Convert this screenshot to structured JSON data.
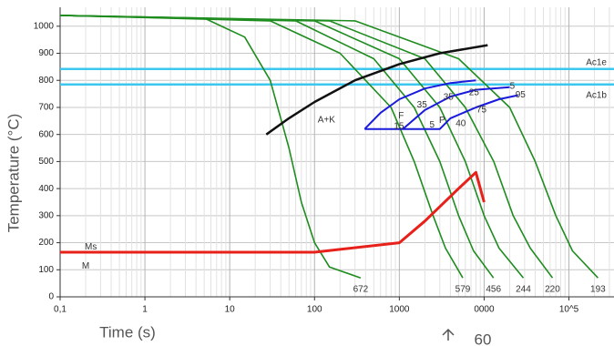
{
  "chart_data": {
    "type": "line",
    "x_label": "Time (s)",
    "y_label": "Temperature (°C)",
    "log_x": true,
    "grid": true,
    "xlim": [
      0.1,
      340000
    ],
    "ylim": [
      0,
      1070
    ],
    "xticks": [
      {
        "value": 0.1,
        "label": "0,1"
      },
      1,
      10,
      100,
      1000,
      {
        "value": 10000,
        "label": "0000"
      },
      {
        "value": 100000,
        "label": "10^5"
      }
    ],
    "yticks": [
      0,
      100,
      200,
      300,
      400,
      500,
      600,
      700,
      800,
      900,
      1000
    ],
    "lines": [
      {
        "color": "#1e8c1e",
        "x": [
          0.1,
          5,
          15,
          30,
          50,
          70,
          100,
          150,
          350
        ],
        "y": [
          1040,
          1030,
          960,
          800,
          550,
          350,
          200,
          110,
          70
        ]
      },
      {
        "color": "#1e8c1e",
        "x": [
          0.1,
          30,
          200,
          800,
          1500,
          2500,
          3500,
          5600
        ],
        "y": [
          1040,
          1020,
          900,
          700,
          500,
          300,
          180,
          70
        ]
      },
      {
        "color": "#1e8c1e",
        "x": [
          0.1,
          60,
          500,
          1500,
          3000,
          5000,
          7500,
          12900
        ],
        "y": [
          1040,
          1020,
          880,
          700,
          500,
          300,
          170,
          70
        ]
      },
      {
        "color": "#1e8c1e",
        "x": [
          0.1,
          100,
          1000,
          3000,
          6000,
          10000,
          15000,
          29000
        ],
        "y": [
          1040,
          1020,
          880,
          700,
          500,
          300,
          180,
          70
        ]
      },
      {
        "color": "#1e8c1e",
        "x": [
          0.1,
          150,
          2000,
          6000,
          13000,
          22000,
          35000,
          64000
        ],
        "y": [
          1040,
          1020,
          880,
          700,
          500,
          300,
          180,
          70
        ]
      },
      {
        "color": "#1e8c1e",
        "x": [
          0.1,
          300,
          5000,
          20000,
          40000,
          70000,
          110000,
          220000
        ],
        "y": [
          1040,
          1020,
          880,
          700,
          500,
          300,
          170,
          70
        ]
      },
      {
        "color": "#111111",
        "x": [
          27,
          50,
          100,
          300,
          1000,
          3000,
          11000
        ],
        "y": [
          600,
          660,
          720,
          800,
          860,
          900,
          930
        ]
      },
      {
        "color": "#1a1adc",
        "x": [
          390,
          600,
          1000,
          2000,
          4000,
          8000
        ],
        "y": [
          620,
          680,
          730,
          770,
          790,
          800
        ]
      },
      {
        "color": "#1a1adc",
        "x": [
          1100,
          2000,
          4000,
          8000,
          20000
        ],
        "y": [
          620,
          690,
          740,
          765,
          775
        ]
      },
      {
        "color": "#1a1adc",
        "x": [
          390,
          3000,
          4000,
          8000,
          15000,
          25000
        ],
        "y": [
          620,
          620,
          660,
          700,
          730,
          745
        ]
      },
      {
        "color": "#e8201a",
        "x": [
          0.1,
          100,
          1000,
          2000,
          5000,
          8000,
          10000
        ],
        "y": [
          165,
          165,
          200,
          280,
          400,
          460,
          350
        ]
      }
    ],
    "hlines": [
      {
        "value": 842,
        "color": "#3cc8ee",
        "label": "Ac1e"
      },
      {
        "value": 785,
        "color": "#3cc8ee",
        "label": "Ac1b"
      }
    ],
    "end_labels": [
      {
        "x": 350,
        "text": 672
      },
      {
        "x": 5600,
        "text": 579
      },
      {
        "x": 12900,
        "text": 456
      },
      {
        "x": 29000,
        "text": 244
      },
      {
        "x": 64000,
        "text": 220
      },
      {
        "x": 220000,
        "text": 193
      }
    ],
    "annotations": [
      {
        "x": 138,
        "y": 654,
        "text": "A+K"
      },
      {
        "x": 1050,
        "y": 668,
        "text": "F"
      },
      {
        "x": 3200,
        "y": 651,
        "text": "P"
      },
      {
        "x": 990,
        "y": 630,
        "text": "15"
      },
      {
        "x": 2430,
        "y": 634,
        "text": "5"
      },
      {
        "x": 5300,
        "y": 640,
        "text": "40"
      },
      {
        "x": 1850,
        "y": 708,
        "text": "35"
      },
      {
        "x": 3800,
        "y": 738,
        "text": "35"
      },
      {
        "x": 7600,
        "y": 755,
        "text": "25"
      },
      {
        "x": 9300,
        "y": 691,
        "text": "75"
      },
      {
        "x": 21500,
        "y": 778,
        "text": "5"
      },
      {
        "x": 26800,
        "y": 745,
        "text": "95"
      },
      {
        "x": 0.23,
        "y": 184,
        "text": "Ms"
      },
      {
        "x": 0.2,
        "y": 114,
        "text": "M"
      }
    ]
  },
  "footer": {
    "page": 60
  }
}
